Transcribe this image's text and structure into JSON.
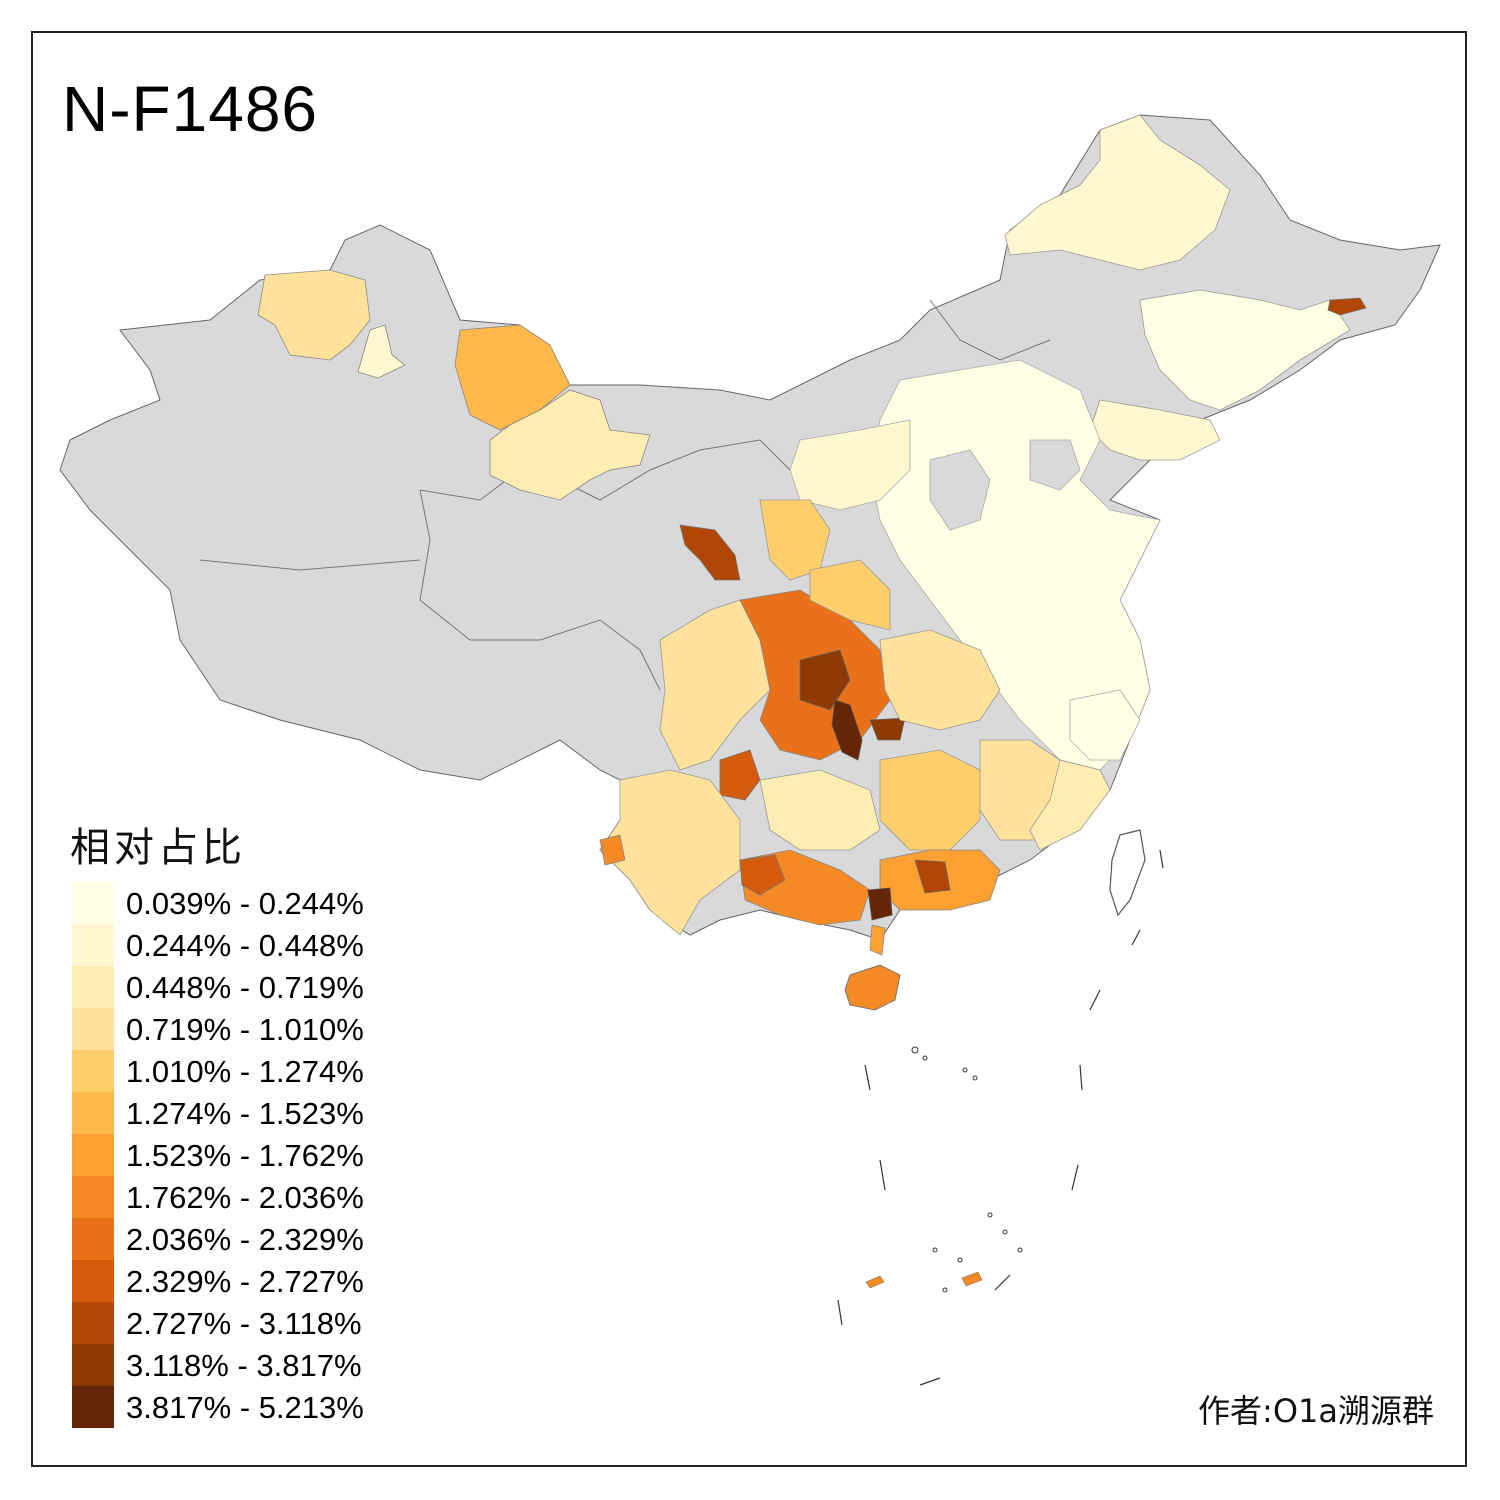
{
  "title": "N-F1486",
  "legend": {
    "title": "相对占比",
    "items": [
      {
        "label": "0.039% - 0.244%",
        "color": "#ffffe5"
      },
      {
        "label": "0.244% - 0.448%",
        "color": "#fff7cf"
      },
      {
        "label": "0.448% - 0.719%",
        "color": "#feedb3"
      },
      {
        "label": "0.719% - 1.010%",
        "color": "#fee19a"
      },
      {
        "label": "1.010% - 1.274%",
        "color": "#fece6a"
      },
      {
        "label": "1.274% - 1.523%",
        "color": "#feb94a"
      },
      {
        "label": "1.523% - 1.762%",
        "color": "#fca131"
      },
      {
        "label": "1.762% - 2.036%",
        "color": "#f58a24"
      },
      {
        "label": "2.036% - 2.329%",
        "color": "#e8711a"
      },
      {
        "label": "2.329% - 2.727%",
        "color": "#d45a0c"
      },
      {
        "label": "2.727% - 3.118%",
        "color": "#b24705"
      },
      {
        "label": "3.118% - 3.817%",
        "color": "#8e3a05"
      },
      {
        "label": "3.817% - 5.213%",
        "color": "#662506"
      }
    ]
  },
  "no_data_color": "#d9d9d9",
  "author": "作者:O1a溯源群"
}
